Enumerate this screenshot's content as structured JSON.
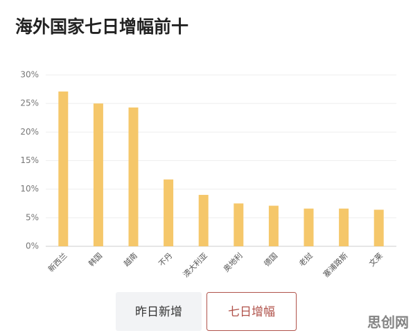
{
  "chart_data": {
    "type": "bar",
    "title": "海外国家七日增幅前十",
    "categories": [
      "新西兰",
      "韩国",
      "越南",
      "不丹",
      "澳大利亚",
      "奥地利",
      "德国",
      "老挝",
      "塞浦路斯",
      "文莱"
    ],
    "values": [
      27.1,
      25.0,
      24.3,
      11.7,
      9.0,
      7.5,
      7.1,
      6.6,
      6.6,
      6.4
    ],
    "color": "#f5c76a",
    "ylim": [
      0,
      30
    ],
    "yticks": [
      {
        "value": 0,
        "label": "0%"
      },
      {
        "value": 5,
        "label": "5%"
      },
      {
        "value": 10,
        "label": "10%"
      },
      {
        "value": 15,
        "label": "15%"
      },
      {
        "value": 20,
        "label": "20%"
      },
      {
        "value": 25,
        "label": "25%"
      },
      {
        "value": 30,
        "label": "30%"
      }
    ],
    "grid": true
  },
  "buttons": [
    "昨日新增",
    "七日增幅"
  ],
  "watermark": "思创网"
}
